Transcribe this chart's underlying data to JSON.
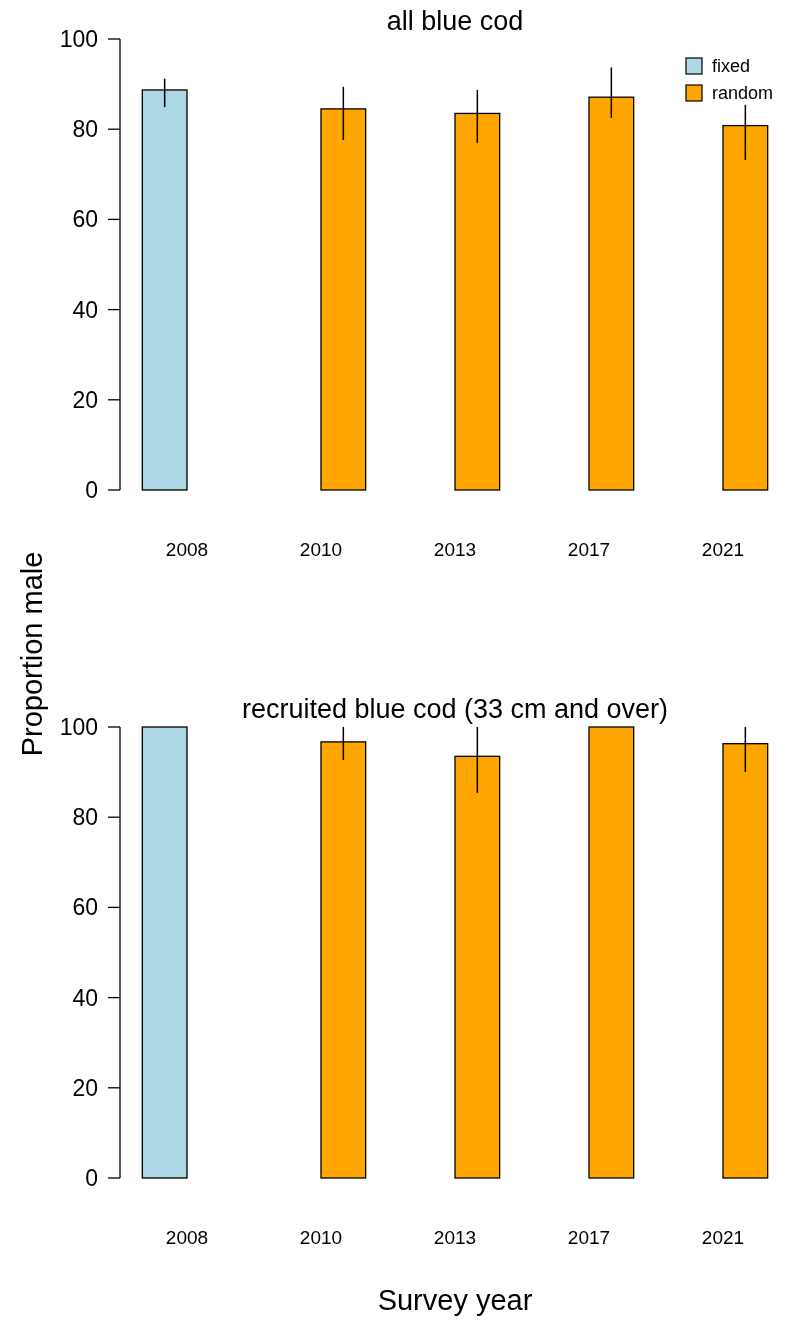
{
  "chart_data": [
    {
      "type": "bar",
      "title": "all blue cod",
      "ylabel": "Proportion male",
      "categories": [
        "2008",
        "2010",
        "2013",
        "2017",
        "2021"
      ],
      "series": [
        {
          "name": "fixed",
          "color": "#add8e6",
          "values": [
            88.7,
            null,
            null,
            null,
            null
          ],
          "errors": [
            [
              84.9,
              91.2
            ],
            null,
            null,
            null,
            null
          ]
        },
        {
          "name": "random",
          "color": "#ffa500",
          "values": [
            null,
            84.5,
            83.5,
            87.1,
            80.8
          ],
          "errors": [
            null,
            [
              77.6,
              89.4
            ],
            [
              77.0,
              88.7
            ],
            [
              82.5,
              93.7
            ],
            [
              73.2,
              85.4
            ]
          ]
        }
      ],
      "ylim": [
        0,
        100
      ],
      "yticks": [
        0,
        20,
        40,
        60,
        80,
        100
      ],
      "legend": "top right"
    },
    {
      "type": "bar",
      "title": "recruited blue cod (33 cm and over)",
      "xlabel": "Survey year",
      "categories": [
        "2008",
        "2010",
        "2013",
        "2017",
        "2021"
      ],
      "series": [
        {
          "color": "#add8e6",
          "values": [
            100,
            null,
            null,
            null,
            null
          ],
          "errors": [
            null,
            null,
            null,
            null,
            null
          ]
        },
        {
          "color": "#ffa500",
          "values": [
            null,
            96.7,
            93.5,
            100,
            96.3
          ],
          "errors": [
            null,
            [
              92.7,
              100
            ],
            [
              85.4,
              100
            ],
            null,
            [
              90.0,
              100
            ]
          ]
        }
      ],
      "ylim": [
        0,
        100
      ],
      "yticks": [
        0,
        20,
        40,
        60,
        80,
        100
      ]
    }
  ]
}
